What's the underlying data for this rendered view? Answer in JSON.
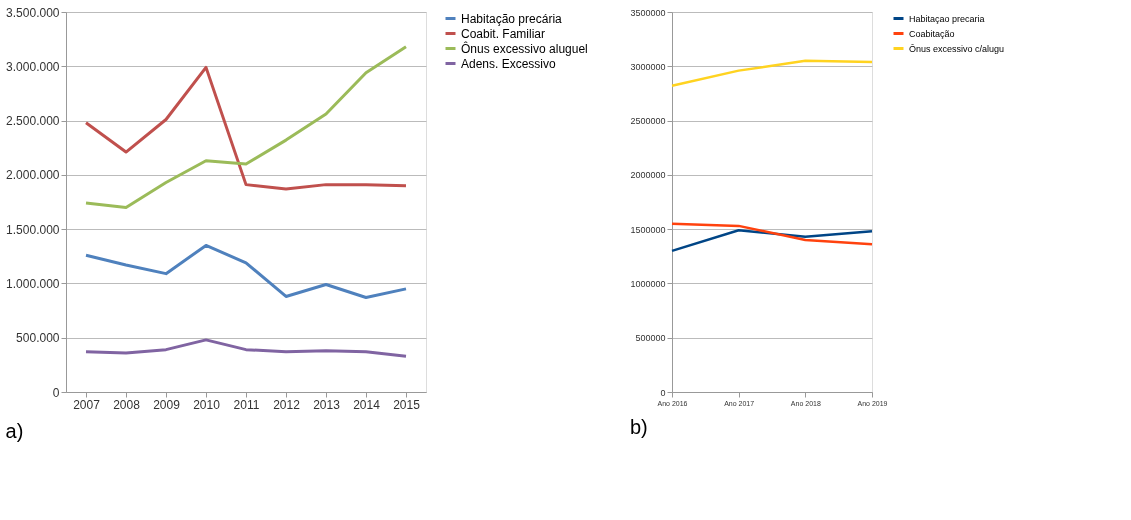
{
  "chart_data": [
    {
      "type": "line",
      "categories": [
        "2007",
        "2008",
        "2009",
        "2010",
        "2011",
        "2012",
        "2013",
        "2014",
        "2015"
      ],
      "series": [
        {
          "name": "Habitação precária",
          "color": "#4f81bd",
          "values": [
            1260000,
            1170000,
            1090000,
            1350000,
            1190000,
            880000,
            990000,
            870000,
            950000
          ]
        },
        {
          "name": "Coabit. Familiar",
          "color": "#c0504d",
          "values": [
            2480000,
            2210000,
            2510000,
            2990000,
            1910000,
            1870000,
            1910000,
            1910000,
            1900000
          ]
        },
        {
          "name": "Ônus excessivo aluguel",
          "color": "#9bbb59",
          "values": [
            1740000,
            1700000,
            1930000,
            2130000,
            2100000,
            2320000,
            2560000,
            2940000,
            3180000
          ]
        },
        {
          "name": "Adens. Excessivo",
          "color": "#8064a2",
          "values": [
            370000,
            360000,
            390000,
            480000,
            390000,
            370000,
            380000,
            370000,
            330000
          ]
        }
      ],
      "ylim": [
        0,
        3500000
      ],
      "yticks": [
        0,
        {
          "value": 500000,
          "label": "500.000"
        },
        {
          "value": 1000000,
          "label": "1.000.000"
        },
        {
          "value": 1500000,
          "label": "1.500.000"
        },
        {
          "value": 2000000,
          "label": "2.000.000"
        },
        {
          "value": 2500000,
          "label": "2.500.000"
        },
        {
          "value": 3000000,
          "label": "3.000.000"
        },
        {
          "value": 3500000,
          "label": "3.500.000"
        }
      ],
      "grid": "y",
      "legend": "right",
      "marker": "none",
      "line_style": "solid",
      "annotations": [
        "a)"
      ]
    },
    {
      "type": "line",
      "categories": [
        "Ano 2016",
        "Ano 2017",
        "Ano 2018",
        "Ano 2019"
      ],
      "series": [
        {
          "name": "Habitaçao precaria",
          "color": "#004586",
          "values": [
            1300000,
            1490000,
            1430000,
            1480000
          ]
        },
        {
          "name": "Coabitação",
          "color": "#ff420e",
          "values": [
            1550000,
            1530000,
            1400000,
            1360000
          ]
        },
        {
          "name": "Ônus excessivo c/alugu",
          "color": "#ffd320",
          "values": [
            2820000,
            2960000,
            3050000,
            3040000
          ]
        }
      ],
      "ylim": [
        0,
        3500000
      ],
      "yticks": [
        0,
        500000,
        1000000,
        1500000,
        2000000,
        2500000,
        3000000,
        3500000
      ],
      "grid": "y",
      "legend": "right",
      "marker": "none",
      "line_style": "solid",
      "annotations": [
        "b)"
      ]
    }
  ]
}
